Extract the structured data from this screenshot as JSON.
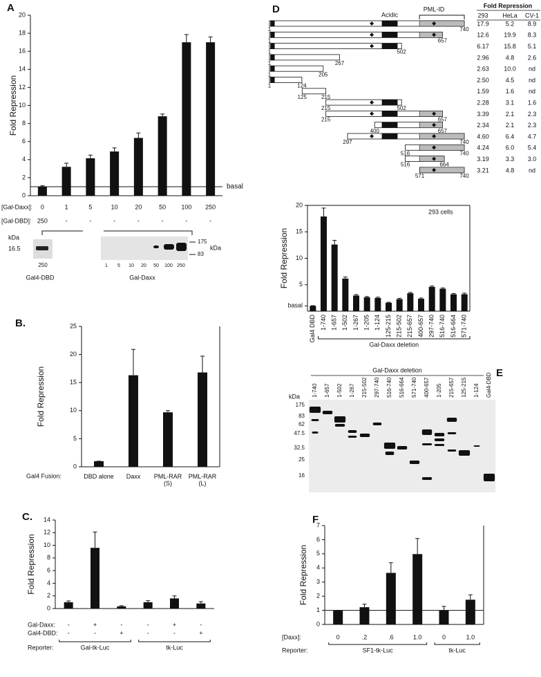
{
  "chart_data": [
    {
      "type": "bar",
      "panel_label": "A",
      "y_label": "Fold Repression",
      "category_label": "[Gal-Daxx]:",
      "categories": [
        "0",
        "1",
        "5",
        "10",
        "20",
        "50",
        "100",
        "250"
      ],
      "rows": [
        {
          "label": "[Gal-DBD]:",
          "values": [
            "250",
            "-",
            "-",
            "-",
            "-",
            "-",
            "-",
            "-"
          ]
        }
      ],
      "values": [
        1.0,
        3.2,
        4.15,
        4.9,
        6.4,
        8.8,
        17.0,
        17.0
      ],
      "errors": [
        0.1,
        0.4,
        0.35,
        0.4,
        0.55,
        0.25,
        0.85,
        0.6
      ],
      "color": "#111111",
      "ylim": [
        0,
        20
      ],
      "yticks": [
        0,
        2,
        4,
        6,
        8,
        10,
        12,
        14,
        16,
        18,
        20
      ],
      "reference_line": 1,
      "reference_label": "basal"
    },
    {
      "type": "bar",
      "panel_label": "B.",
      "y_label": "Fold Repression",
      "category_label": "Gal4 Fusion:",
      "categories": [
        "DBD alone",
        "Daxx",
        "PML-RAR (S)",
        "PML-RAR (L)"
      ],
      "values": [
        1.0,
        16.3,
        9.7,
        16.8
      ],
      "errors": [
        0,
        4.6,
        0.3,
        2.9
      ],
      "color": "#111111",
      "ylim": [
        0,
        25
      ],
      "yticks": [
        0,
        5,
        10,
        15,
        20,
        25
      ]
    },
    {
      "type": "bar",
      "panel_label": "C.",
      "y_label": "Fold Repression",
      "category_label": "Gal-Daxx:",
      "categories": [
        "-",
        "+",
        "-",
        "-",
        "+",
        "-"
      ],
      "rows": [
        {
          "label": "Gal4-DBD:",
          "values": [
            "-",
            "-",
            "+",
            "-",
            "-",
            "+"
          ]
        }
      ],
      "group_label": "Reporter:",
      "groups": [
        {
          "label": "Gal-tk-Luc",
          "span": 3
        },
        {
          "label": "tk-Luc",
          "span": 3
        }
      ],
      "values": [
        1.0,
        9.6,
        0.35,
        1.0,
        1.6,
        0.8
      ],
      "errors": [
        0.2,
        2.5,
        0.1,
        0.25,
        0.4,
        0.3
      ],
      "color": "#111111",
      "ylim": [
        0,
        14
      ],
      "yticks": [
        0,
        2,
        4,
        6,
        8,
        10,
        12,
        14
      ]
    },
    {
      "type": "bar",
      "panel_label": "D",
      "y_label": "Fold Repression",
      "annotation": "293 cells",
      "x_label": "Gal-Daxx deletion",
      "categories": [
        "Gal4 DBD",
        "1-740",
        "1-657",
        "1-502",
        "1-267",
        "1-205",
        "1-124",
        "125-215",
        "215-502",
        "215-657",
        "400-657",
        "297-740",
        "516-740",
        "516-664",
        "571-740"
      ],
      "values": [
        1.0,
        17.9,
        12.6,
        6.17,
        2.96,
        2.63,
        2.5,
        1.59,
        2.28,
        3.39,
        2.34,
        4.6,
        4.24,
        3.19,
        3.21
      ],
      "errors": [
        0.05,
        1.6,
        0.8,
        0.3,
        0.2,
        0.15,
        0.15,
        0.1,
        0.15,
        0.15,
        0.15,
        0.15,
        0.15,
        0.15,
        0.2
      ],
      "color": "#111111",
      "ylim": [
        0,
        20
      ],
      "yticks": [
        {
          "value": 1,
          "label": "basal"
        },
        5,
        10,
        15,
        20
      ]
    },
    {
      "type": "bar",
      "panel_label": "F",
      "y_label": "Fold Repression",
      "category_label": "[Daxx]:",
      "categories": [
        "0",
        ".2",
        ".6",
        "1.0",
        "0",
        "1.0"
      ],
      "group_label": "Reporter:",
      "groups": [
        {
          "label": "SF1-tk-Luc",
          "span": 4
        },
        {
          "label": "tk-Luc",
          "span": 2
        }
      ],
      "values": [
        1.0,
        1.22,
        3.65,
        4.98,
        0.98,
        1.75
      ],
      "errors": [
        0,
        0.22,
        0.72,
        1.1,
        0.3,
        0.35
      ],
      "color": "#111111",
      "ylim": [
        0,
        7
      ],
      "yticks": [
        0,
        1,
        2,
        3,
        4,
        5,
        6,
        7
      ],
      "reference_line": 1
    }
  ],
  "panel_A_blot": {
    "unit": "kDa",
    "left_marker": "16.5",
    "left_lane": "250",
    "left_caption": "Gal4-DBD",
    "lanes": [
      "1",
      "5",
      "10",
      "20",
      "50",
      "100",
      "250"
    ],
    "right_markers": [
      "175",
      "83"
    ],
    "right_unit": "kDa",
    "caption": "Gal-Daxx"
  },
  "panel_D_constructs": {
    "acidic_label": "Acidic",
    "pml_label": "PML-ID",
    "constructs": [
      [
        1,
        740
      ],
      [
        1,
        657
      ],
      [
        1,
        502
      ],
      [
        1,
        267
      ],
      [
        1,
        205
      ],
      [
        1,
        124
      ],
      [
        125,
        215
      ],
      [
        215,
        502
      ],
      [
        215,
        657
      ],
      [
        400,
        657
      ],
      [
        297,
        740
      ],
      [
        516,
        740
      ],
      [
        516,
        664
      ],
      [
        571,
        740
      ]
    ]
  },
  "panel_D_table": {
    "header": "Fold Repression",
    "columns": [
      "293",
      "HeLa",
      "CV-1"
    ],
    "rows": [
      [
        "17.9",
        "5.2",
        "8.9"
      ],
      [
        "12.6",
        "19.9",
        "8.3"
      ],
      [
        "6.17",
        "15.8",
        "5.1"
      ],
      [
        "2.96",
        "4.8",
        "2.6"
      ],
      [
        "2.63",
        "10.0",
        "nd"
      ],
      [
        "2.50",
        "4.5",
        "nd"
      ],
      [
        "1.59",
        "1.6",
        "nd"
      ],
      [
        "2.28",
        "3.1",
        "1.6"
      ],
      [
        "3.39",
        "2.1",
        "2.3"
      ],
      [
        "2.34",
        "2.1",
        "2.3"
      ],
      [
        "4.60",
        "6.4",
        "4.7"
      ],
      [
        "4.24",
        "6.0",
        "5.4"
      ],
      [
        "3.19",
        "3.3",
        "3.0"
      ],
      [
        "3.21",
        "4.8",
        "nd"
      ]
    ]
  },
  "panel_E_blot": {
    "panel_label": "E",
    "title": "Gal-Daxx deletion",
    "unit": "kDa",
    "lanes": [
      "1-740",
      "1-657",
      "1-502",
      "1-267",
      "215-502",
      "297-740",
      "516-740",
      "516-664",
      "571-740",
      "400-657",
      "1-205",
      "215-657",
      "125-215",
      "1-124",
      "Gal4-DBD"
    ],
    "markers": [
      "175",
      "83",
      "62",
      "47.5",
      "32.5",
      "25",
      "16"
    ]
  }
}
